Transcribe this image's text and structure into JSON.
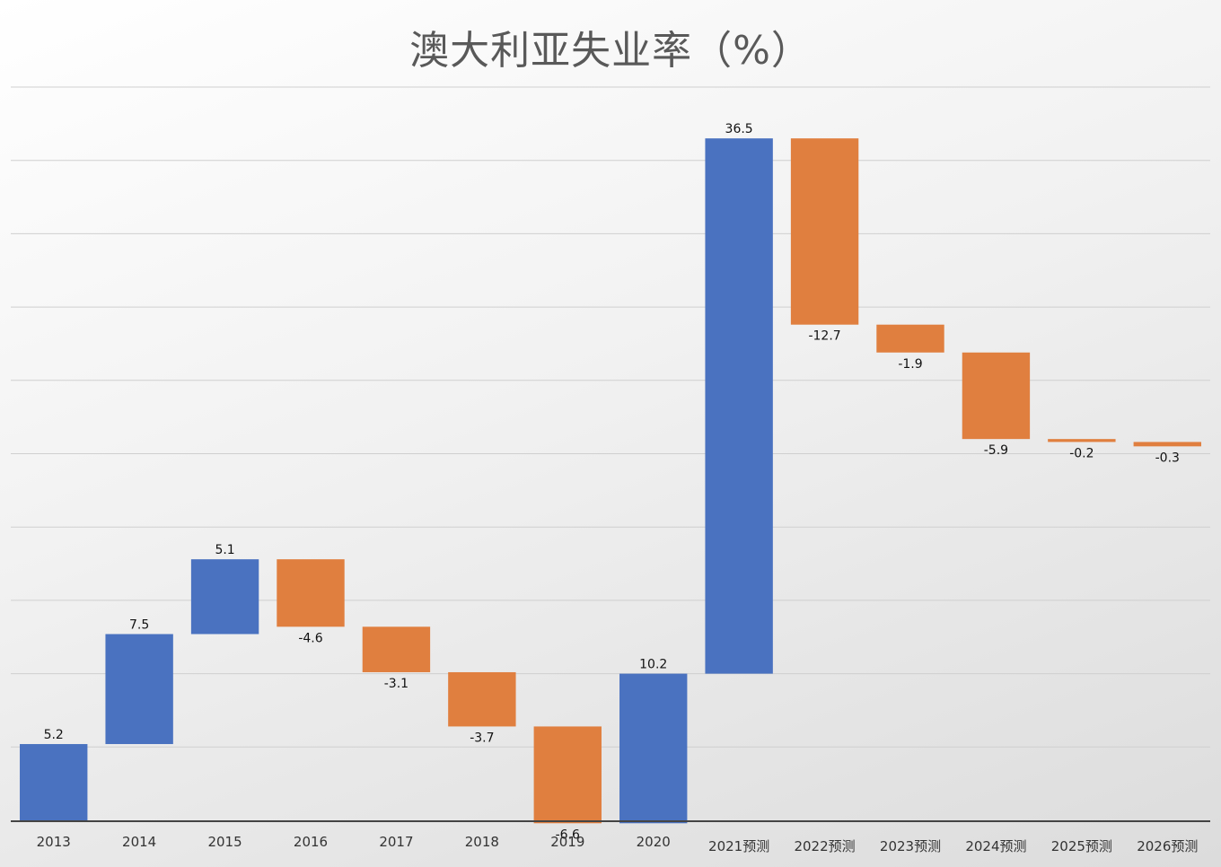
{
  "chart_data": {
    "type": "bar",
    "subtype": "waterfall",
    "title": "澳大利亚失业率（%）",
    "xlabel": "",
    "ylabel": "",
    "categories": [
      "2013",
      "2014",
      "2015",
      "2016",
      "2017",
      "2018",
      "2019",
      "2020",
      "2021预测",
      "2022预测",
      "2023预测",
      "2024预测",
      "2025预测",
      "2026预测"
    ],
    "values": [
      5.2,
      7.5,
      5.1,
      -4.6,
      -3.1,
      -3.7,
      -6.6,
      10.2,
      36.5,
      -12.7,
      -1.9,
      -5.9,
      -0.2,
      -0.3
    ],
    "value_labels": [
      "5.2",
      "7.5",
      "5.1",
      "-4.6",
      "-3.1",
      "-3.7",
      "-6.6",
      "10.2",
      "36.5",
      "-12.7",
      "-1.9",
      "-5.9",
      "-0.2",
      "-0.3"
    ],
    "ylim": [
      0,
      50
    ],
    "y_axis_labels_shown": false,
    "grid": true,
    "legend": "none",
    "colors": {
      "increase": "#4a72c0",
      "decrease": "#e07f3f",
      "gridline": "#cfcfcf",
      "axis": "#444444"
    }
  }
}
